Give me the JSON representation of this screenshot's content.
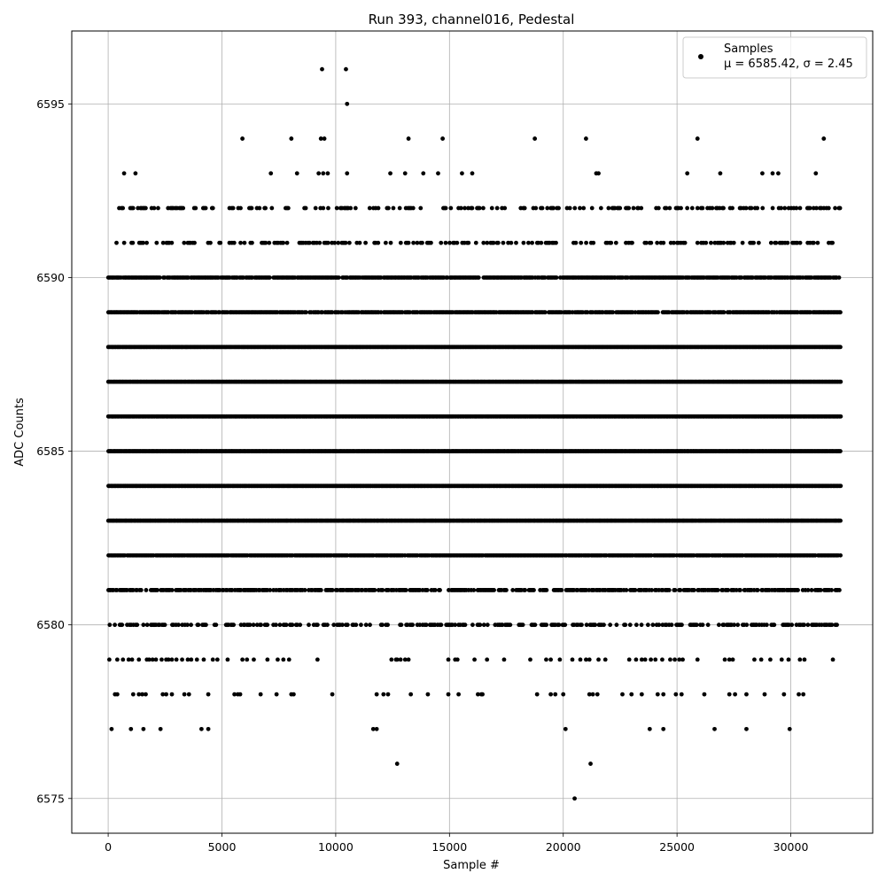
{
  "chart_data": {
    "type": "scatter",
    "title": "Run 393, channel016, Pedestal",
    "xlabel": "Sample #",
    "ylabel": "ADC Counts",
    "xlim": [
      -1600,
      33600
    ],
    "ylim": [
      6574.0,
      6597.1
    ],
    "xticks": [
      0,
      5000,
      10000,
      15000,
      20000,
      25000,
      30000
    ],
    "yticks": [
      6575,
      6580,
      6585,
      6590,
      6595
    ],
    "grid": true,
    "legend": {
      "placement": "top-right",
      "series_label": "Samples",
      "stats_text": "μ = 6585.42, σ = 2.45"
    },
    "marker_color": "#000000",
    "series": [
      {
        "name": "Samples",
        "mean": 6585.42,
        "sigma": 2.45,
        "levels": [
          {
            "y": 6577,
            "x": [
              150,
              1000,
              1550,
              2300,
              4100,
              4400,
              11650,
              11800,
              20100,
              23800,
              24400,
              26650,
              28050,
              29950
            ]
          },
          {
            "y": 6578,
            "x": [
              300,
              400,
              1100,
              1350,
              1500,
              1650,
              2400,
              2550,
              2800,
              3350,
              3550,
              4400,
              5550,
              5700,
              5800,
              6700,
              7400,
              8050,
              8150,
              9850,
              11800,
              12100,
              12300,
              13300,
              14050,
              14950,
              15400,
              16250,
              16400,
              16450,
              18850,
              19450,
              19650,
              20000,
              21150,
              21300,
              21500,
              22600,
              23000,
              23450,
              24150,
              24400,
              24950,
              25200,
              26200,
              27300,
              27550,
              28050,
              28850,
              29700,
              30350,
              30550
            ]
          },
          {
            "y": 6579,
            "x": [
              50,
              400,
              650,
              900,
              1050,
              1350,
              1700,
              1800,
              1950,
              2100,
              2350,
              2550,
              2650,
              2800,
              3000,
              3250,
              3500,
              3650,
              3900,
              4200,
              4600,
              4800,
              5250,
              5900,
              6100,
              6400,
              7000,
              7450,
              7700,
              7950,
              9200,
              12450,
              12650,
              12700,
              12850,
              13050,
              13200,
              14950,
              15250,
              15350,
              16100,
              16650,
              17400,
              18550,
              19250,
              19450,
              19850,
              20400,
              20750,
              21000,
              21150,
              21550,
              21850,
              22900,
              23200,
              23450,
              23600,
              23850,
              24050,
              24350,
              24700,
              24900,
              25100,
              25250,
              25900,
              27100,
              27300,
              27450,
              28400,
              28700,
              29100,
              29600,
              29900,
              30400,
              30600,
              31850
            ]
          },
          {
            "y": 6576,
            "x": [
              12700,
              21200
            ]
          },
          {
            "y": 6575,
            "x": [
              20500
            ]
          },
          {
            "y": 6593,
            "x": [
              700,
              1200,
              7150,
              8300,
              9250,
              9450,
              9650,
              10500,
              12400,
              13050,
              13850,
              14500,
              15550,
              16000,
              21450,
              21550,
              25450,
              26900,
              28750,
              29200,
              29450,
              31100
            ]
          },
          {
            "y": 6594,
            "x": [
              5900,
              8050,
              9350,
              9500,
              13200,
              14700,
              18750,
              21000,
              25900,
              31450
            ]
          },
          {
            "y": 6595,
            "x": [
              10500
            ]
          },
          {
            "y": 6596,
            "x": [
              9400,
              10450
            ]
          }
        ],
        "dense_levels": [
          {
            "y": 6580,
            "x_start": 0,
            "x_end": 32200,
            "density": 0.45
          },
          {
            "y": 6581,
            "x_start": 0,
            "x_end": 32200,
            "density": 0.7
          },
          {
            "y": 6582,
            "x_start": 0,
            "x_end": 32200,
            "density": 0.95
          },
          {
            "y": 6583,
            "x_start": 0,
            "x_end": 32200,
            "density": 1.0
          },
          {
            "y": 6584,
            "x_start": 0,
            "x_end": 32200,
            "density": 1.0
          },
          {
            "y": 6585,
            "x_start": 0,
            "x_end": 32200,
            "density": 1.0
          },
          {
            "y": 6586,
            "x_start": 0,
            "x_end": 32200,
            "density": 1.0
          },
          {
            "y": 6587,
            "x_start": 0,
            "x_end": 32200,
            "density": 1.0
          },
          {
            "y": 6588,
            "x_start": 0,
            "x_end": 32200,
            "density": 1.0
          },
          {
            "y": 6589,
            "x_start": 0,
            "x_end": 32200,
            "density": 0.9
          },
          {
            "y": 6590,
            "x_start": 0,
            "x_end": 32200,
            "density": 0.9
          },
          {
            "y": 6591,
            "x_start": 200,
            "x_end": 32200,
            "density": 0.35
          },
          {
            "y": 6592,
            "x_start": 200,
            "x_end": 32200,
            "density": 0.3
          }
        ]
      }
    ]
  }
}
